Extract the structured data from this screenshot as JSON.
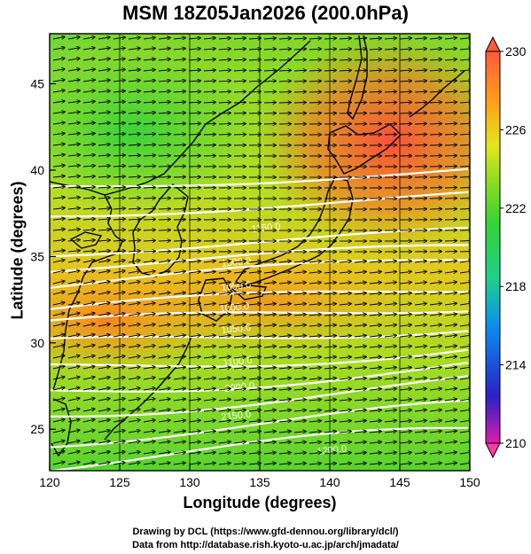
{
  "title": "MSM 18Z05Jan2026 (200.0hPa)",
  "x_axis": {
    "label": "Longitude (degrees)",
    "ticks": [
      "120",
      "125",
      "130",
      "135",
      "140",
      "145",
      "150"
    ]
  },
  "y_axis": {
    "label": "Latitude (degrees)",
    "ticks": [
      "25",
      "30",
      "35",
      "40",
      "45"
    ]
  },
  "colorbar": {
    "labels": [
      "230",
      "226",
      "222",
      "218",
      "214",
      "210"
    ],
    "min": 210,
    "max": 230,
    "colors": [
      "#d81fa8",
      "#2a21c6",
      "#0a8ff0",
      "#1fd08a",
      "#35d335",
      "#86dc22",
      "#e3e51c",
      "#ff9b1a",
      "#ff5a3c"
    ]
  },
  "contour_labels": [
    "1150.0",
    "1000.0",
    "1050.0",
    "1000.0",
    "1050.0",
    "1100.0",
    "2000.0",
    "2150.0",
    "1200.0"
  ],
  "credits": [
    "Drawing by DCL (https://www.gfd-dennou.org/library/dcl/)",
    "Data from http://database.rish.kyoto-u.ac.jp/arch/jmadata/"
  ]
}
